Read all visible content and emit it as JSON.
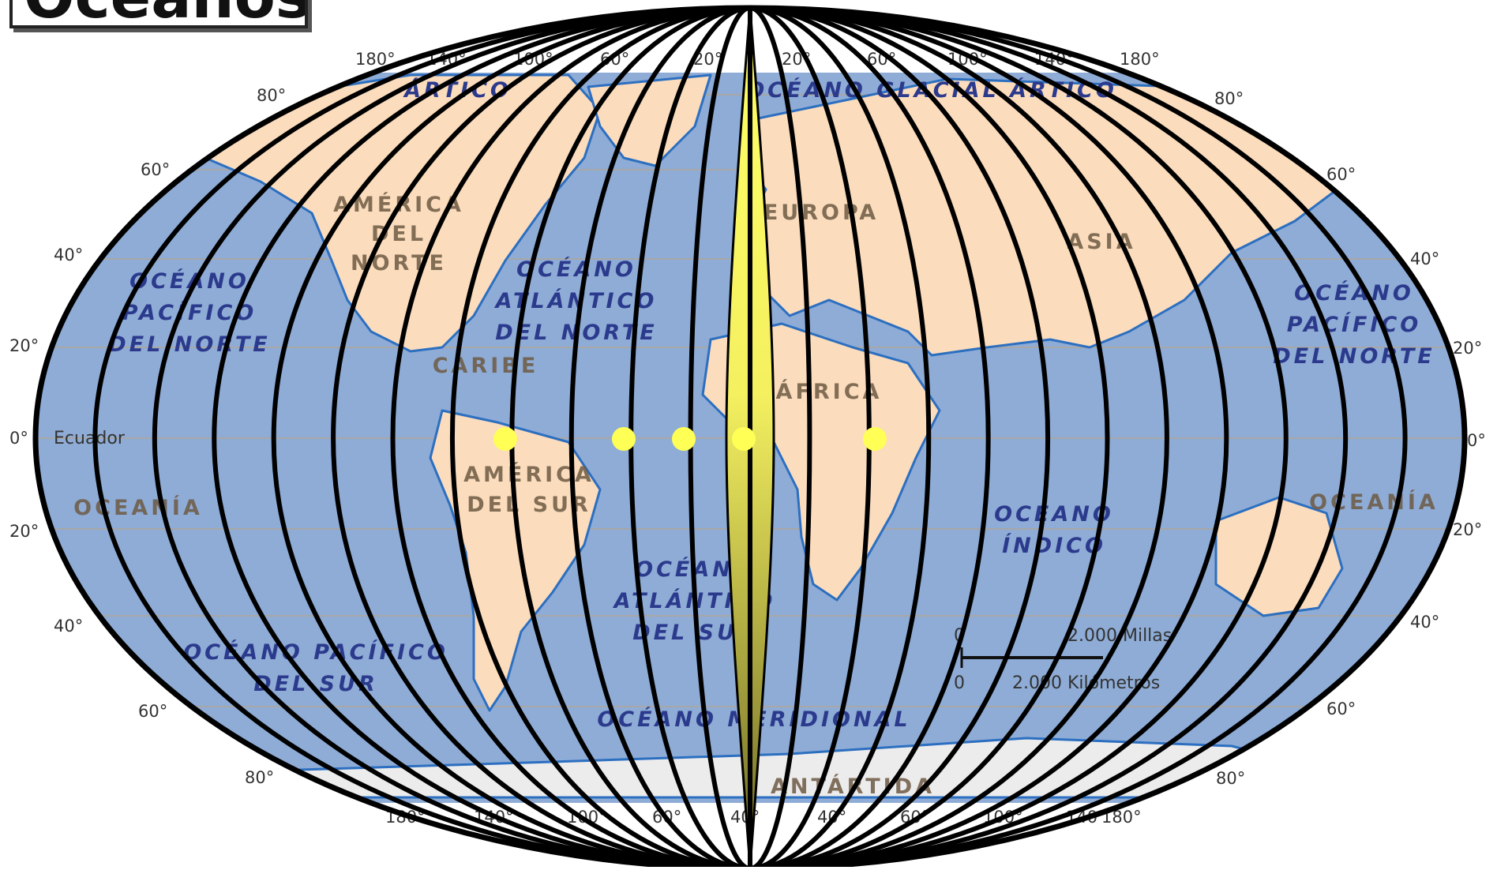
{
  "title": "Océanos",
  "latitude_labels": [
    "80°",
    "60°",
    "40°",
    "20°",
    "0°",
    "20°",
    "40°",
    "60°",
    "80°"
  ],
  "equator_label": "Ecuador",
  "longitude_labels_top": [
    "180°",
    "140°",
    "100°",
    "60°",
    "20°",
    "20°",
    "60°",
    "100°",
    "140°",
    "180°"
  ],
  "longitude_labels_bottom": [
    "180°",
    "140°",
    "100°",
    "60°",
    "40°",
    "40°",
    "60°",
    "100°",
    "140°",
    "180°"
  ],
  "oceans": {
    "pacific_north_west": [
      "OCÉANO",
      "PACÍFICO",
      "DEL NORTE"
    ],
    "pacific_north_east": [
      "OCÉANO",
      "PACÍFICO",
      "DEL NORTE"
    ],
    "atlantic_north": [
      "OCÉANO",
      "ATLÁNTICO",
      "DEL NORTE"
    ],
    "atlantic_south": [
      "OCÉANO",
      "ATLÁNTICO",
      "DEL SUR"
    ],
    "pacific_south": [
      "OCÉANO PACÍFICO",
      "DEL SUR"
    ],
    "indian": [
      "OCÉANO",
      "ÍNDICO"
    ],
    "southern": "OCÉANO MERIDIONAL",
    "arctic": "OCÉANO GLACIAL ÁRTICO",
    "arctic_west": "ÁRTICO"
  },
  "continents": {
    "north_america": [
      "AMÉRICA",
      "DEL",
      "NORTE"
    ],
    "south_america": [
      "AMÉRICA",
      "DEL SUR"
    ],
    "europe": "EUROPA",
    "asia": "ASIA",
    "africa": "ÁFRICA",
    "oceania_west": "OCEANÍA",
    "oceania_east": "OCEANÍA",
    "antarctica": "ANTÁRTIDA",
    "caribbean": "CARIBE"
  },
  "scale": {
    "miles": "2.000 Millas",
    "km": "2.000 Kilómetros",
    "zero_top": "0",
    "zero_bottom": "0"
  },
  "gore_count": 24,
  "markers_on_equator_count": 5,
  "colors": {
    "ocean": "#8eacd6",
    "land": "#fbdcbd",
    "ice": "#ececec",
    "coast": "#2c6fc0",
    "gore_line": "#000000",
    "highlight_gore_top": "#ffff66",
    "highlight_gore_bottom": "#6e6a26",
    "marker": "#ffff55"
  }
}
